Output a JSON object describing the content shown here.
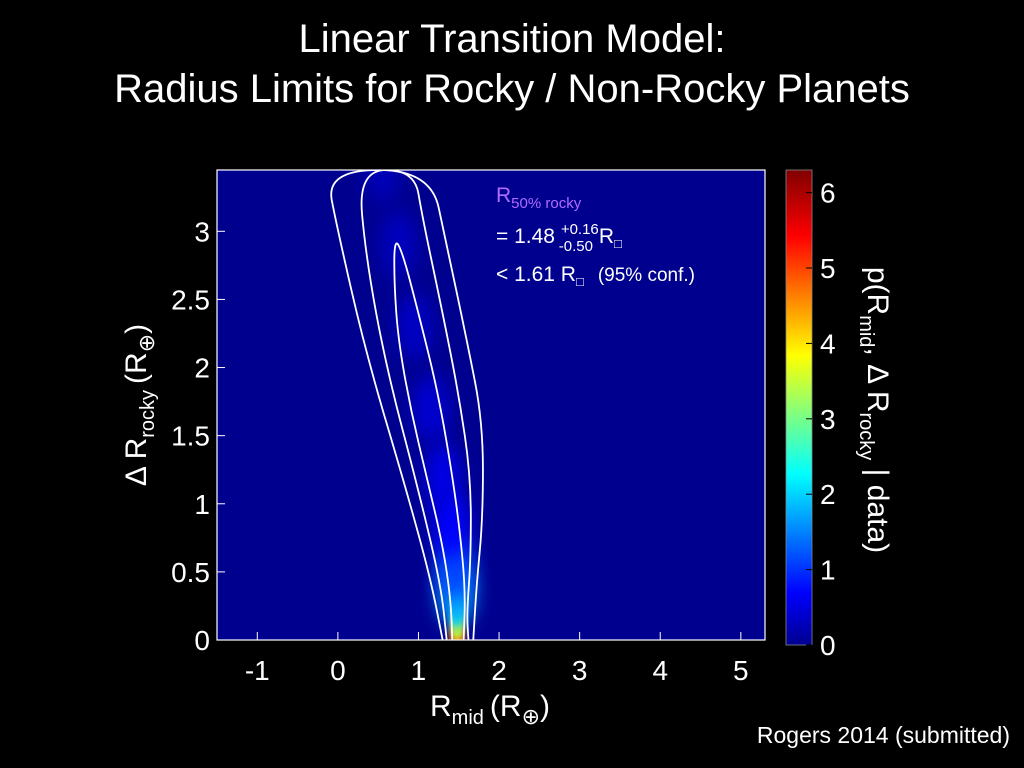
{
  "slide": {
    "title_line1": "Linear Transition Model:",
    "title_line2": "Radius Limits for Rocky / Non-Rocky Planets",
    "credit": "Rogers 2014 (submitted)"
  },
  "annotation": {
    "label_main": "R",
    "label_sub": "50% rocky",
    "line2_prefix": "=  1.48 ",
    "line2_sup": "+0.16",
    "line2_sub": "-0.50",
    "line2_unit": " R",
    "line2_unit_glyph": "□",
    "line3_text": "< 1.61 R",
    "line3_unit_glyph": "□",
    "line3_conf": "(95% conf.)",
    "label_color": "#b06bff"
  },
  "chart_data": {
    "type": "heatmap",
    "xlabel_main": "R",
    "xlabel_sub": "mid",
    "xlabel_unit": "(R",
    "xlabel_unit_sub": "⊕",
    "xlabel_close": ")",
    "ylabel_main": "Δ R",
    "ylabel_sub": "rocky",
    "ylabel_unit": "(R",
    "ylabel_unit_sub": "⊕",
    "ylabel_close": ")",
    "xlim": [
      -1.5,
      5.3
    ],
    "ylim": [
      0,
      3.45
    ],
    "x_ticks": [
      -1,
      0,
      1,
      2,
      3,
      4,
      5
    ],
    "x_tick_labels": [
      "-1",
      "0",
      "1",
      "2",
      "3",
      "4",
      "5"
    ],
    "y_ticks": [
      0,
      0.5,
      1,
      1.5,
      2,
      2.5,
      3
    ],
    "y_tick_labels": [
      "0",
      "0.5",
      "1",
      "1.5",
      "2",
      "2.5",
      "3"
    ],
    "colorbar": {
      "label": "p(R",
      "label_sub1": "mid",
      "label_mid": ", Δ R",
      "label_sub2": "rocky",
      "label_end": " | data)",
      "range": [
        0,
        6.3
      ],
      "ticks": [
        0,
        1,
        2,
        3,
        4,
        5,
        6
      ],
      "tick_labels": [
        "0",
        "1",
        "2",
        "3",
        "4",
        "5",
        "6"
      ],
      "colormap": "jet"
    },
    "background_color": "#00008f",
    "ridge": [
      {
        "x": 1.48,
        "y": 0.0,
        "density": 6.2
      },
      {
        "x": 1.48,
        "y": 0.05,
        "density": 4.8
      },
      {
        "x": 1.48,
        "y": 0.12,
        "density": 3.6
      },
      {
        "x": 1.48,
        "y": 0.22,
        "density": 2.6
      },
      {
        "x": 1.47,
        "y": 0.35,
        "density": 1.8
      },
      {
        "x": 1.45,
        "y": 0.55,
        "density": 1.2
      },
      {
        "x": 1.4,
        "y": 0.85,
        "density": 0.8
      },
      {
        "x": 1.3,
        "y": 1.2,
        "density": 0.62
      },
      {
        "x": 1.15,
        "y": 1.7,
        "density": 0.5
      },
      {
        "x": 0.95,
        "y": 2.3,
        "density": 0.42
      },
      {
        "x": 0.75,
        "y": 2.9,
        "density": 0.38
      },
      {
        "x": 0.55,
        "y": 3.45,
        "density": 0.34
      }
    ],
    "contours": [
      {
        "name": "inner",
        "points": [
          [
            1.42,
            0
          ],
          [
            1.4,
            0.3
          ],
          [
            1.3,
            0.7
          ],
          [
            1.1,
            1.2
          ],
          [
            0.9,
            1.7
          ],
          [
            0.75,
            2.2
          ],
          [
            0.7,
            2.6
          ],
          [
            0.7,
            2.95
          ],
          [
            0.8,
            2.85
          ],
          [
            1.0,
            2.4
          ],
          [
            1.25,
            1.8
          ],
          [
            1.45,
            1.1
          ],
          [
            1.55,
            0.6
          ],
          [
            1.58,
            0.3
          ],
          [
            1.56,
            0
          ]
        ]
      },
      {
        "name": "middle",
        "points": [
          [
            1.35,
            0
          ],
          [
            1.28,
            0.4
          ],
          [
            1.0,
            1.1
          ],
          [
            0.6,
            2.0
          ],
          [
            0.35,
            2.8
          ],
          [
            0.25,
            3.45
          ],
          [
            0.95,
            3.45
          ],
          [
            1.05,
            3.1
          ],
          [
            1.3,
            2.4
          ],
          [
            1.5,
            1.8
          ],
          [
            1.65,
            1.2
          ],
          [
            1.65,
            0.6
          ],
          [
            1.6,
            0.2
          ],
          [
            1.62,
            0
          ]
        ]
      },
      {
        "name": "outer",
        "points": [
          [
            1.3,
            0
          ],
          [
            1.15,
            0.45
          ],
          [
            0.85,
            1.1
          ],
          [
            0.35,
            2.1
          ],
          [
            0.0,
            3.0
          ],
          [
            -0.15,
            3.45
          ],
          [
            1.15,
            3.45
          ],
          [
            1.35,
            2.9
          ],
          [
            1.6,
            2.2
          ],
          [
            1.8,
            1.6
          ],
          [
            1.8,
            0.9
          ],
          [
            1.72,
            0.4
          ],
          [
            1.68,
            0
          ]
        ]
      }
    ]
  }
}
